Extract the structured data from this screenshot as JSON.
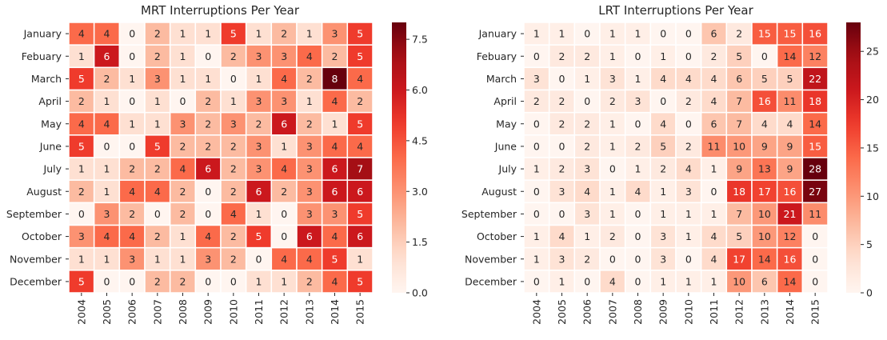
{
  "chart_data": [
    {
      "type": "heatmap",
      "title": "MRT Interruptions Per Year",
      "xlabel": "",
      "ylabel": "",
      "x_categories": [
        "2004",
        "2005",
        "2006",
        "2007",
        "2008",
        "2009",
        "2010",
        "2011",
        "2012",
        "2013",
        "2014",
        "2015"
      ],
      "y_categories": [
        "January",
        "Febuary",
        "March",
        "April",
        "May",
        "June",
        "July",
        "August",
        "September",
        "October",
        "November",
        "December"
      ],
      "values": [
        [
          4,
          4,
          0,
          2,
          1,
          1,
          5,
          1,
          2,
          1,
          3,
          5
        ],
        [
          1,
          6,
          0,
          2,
          1,
          0,
          2,
          3,
          3,
          4,
          2,
          5
        ],
        [
          5,
          2,
          1,
          3,
          1,
          1,
          0,
          1,
          4,
          2,
          8,
          4
        ],
        [
          2,
          1,
          0,
          1,
          0,
          2,
          1,
          3,
          3,
          1,
          4,
          2
        ],
        [
          4,
          4,
          1,
          1,
          3,
          2,
          3,
          2,
          6,
          2,
          1,
          5
        ],
        [
          5,
          0,
          0,
          5,
          2,
          2,
          2,
          3,
          1,
          3,
          4,
          4
        ],
        [
          1,
          1,
          2,
          2,
          4,
          6,
          2,
          3,
          4,
          3,
          6,
          7
        ],
        [
          2,
          1,
          4,
          4,
          2,
          0,
          2,
          6,
          2,
          3,
          6,
          6
        ],
        [
          0,
          3,
          2,
          0,
          2,
          0,
          4,
          1,
          0,
          3,
          3,
          5
        ],
        [
          3,
          4,
          4,
          2,
          1,
          4,
          2,
          5,
          0,
          6,
          4,
          6
        ],
        [
          1,
          1,
          3,
          1,
          1,
          3,
          2,
          0,
          4,
          4,
          5,
          1
        ],
        [
          5,
          0,
          0,
          2,
          2,
          0,
          0,
          1,
          1,
          2,
          4,
          5
        ]
      ],
      "colorbar": {
        "vmin": 0,
        "vmax": 8,
        "ticks": [
          0,
          1.5,
          3,
          4.5,
          6,
          7.5
        ],
        "tick_labels": [
          "0.0",
          "1.5",
          "3.0",
          "4.5",
          "6.0",
          "7.5"
        ]
      },
      "colormap": "Reds"
    },
    {
      "type": "heatmap",
      "title": "LRT Interruptions Per Year",
      "xlabel": "",
      "ylabel": "",
      "x_categories": [
        "2004",
        "2005",
        "2006",
        "2007",
        "2008",
        "2009",
        "2010",
        "2011",
        "2012",
        "2013",
        "2014",
        "2015"
      ],
      "y_categories": [
        "January",
        "Febuary",
        "March",
        "April",
        "May",
        "June",
        "July",
        "August",
        "September",
        "October",
        "November",
        "December"
      ],
      "values": [
        [
          1,
          1,
          0,
          1,
          1,
          0,
          0,
          6,
          2,
          15,
          15,
          16
        ],
        [
          0,
          2,
          2,
          1,
          0,
          1,
          0,
          2,
          5,
          0,
          14,
          12
        ],
        [
          3,
          0,
          1,
          3,
          1,
          4,
          4,
          4,
          6,
          5,
          5,
          22
        ],
        [
          2,
          2,
          0,
          2,
          3,
          0,
          2,
          4,
          7,
          16,
          11,
          18
        ],
        [
          0,
          2,
          2,
          1,
          0,
          4,
          0,
          6,
          7,
          4,
          4,
          14
        ],
        [
          0,
          0,
          2,
          1,
          2,
          5,
          2,
          11,
          10,
          9,
          9,
          15
        ],
        [
          1,
          2,
          3,
          0,
          1,
          2,
          4,
          1,
          9,
          13,
          9,
          28
        ],
        [
          0,
          3,
          4,
          1,
          4,
          1,
          3,
          0,
          18,
          17,
          16,
          27
        ],
        [
          0,
          0,
          3,
          1,
          0,
          1,
          1,
          1,
          7,
          10,
          21,
          11
        ],
        [
          1,
          4,
          1,
          2,
          0,
          3,
          1,
          4,
          5,
          10,
          12,
          0
        ],
        [
          1,
          3,
          2,
          0,
          0,
          3,
          0,
          4,
          17,
          14,
          16,
          0
        ],
        [
          0,
          1,
          0,
          4,
          0,
          1,
          1,
          1,
          10,
          6,
          14,
          0
        ]
      ],
      "colorbar": {
        "vmin": 0,
        "vmax": 28,
        "ticks": [
          0,
          5,
          10,
          15,
          20,
          25
        ],
        "tick_labels": [
          "0",
          "5",
          "10",
          "15",
          "20",
          "25"
        ]
      },
      "colormap": "Reds"
    }
  ],
  "colors": {
    "scale": [
      "#fff5f0",
      "#fee0d2",
      "#fcbba1",
      "#fc9272",
      "#fb6a4a",
      "#ef3b2c",
      "#cb181d",
      "#a50f15",
      "#67000d"
    ],
    "text_light": "#ffffff",
    "text_dark": "#262626",
    "axis": "#262626"
  }
}
